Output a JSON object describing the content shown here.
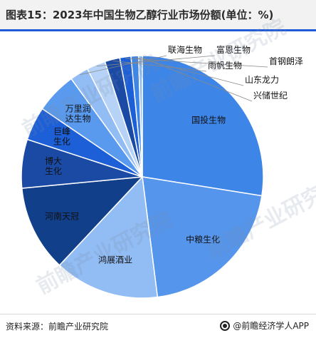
{
  "header": {
    "title": "图表15：2023年中国生物乙醇行业市场份额(单位：%)"
  },
  "footer": {
    "source": "资料来源：前瞻产业研究院",
    "brand": "@前瞻经济学人APP"
  },
  "watermark": {
    "text": "前瞻产业研究院"
  },
  "colors": {
    "dark_navy": "#123f8a",
    "dark_blue": "#1a4aa3",
    "royal_blue": "#1d5fd6",
    "medium_blue": "#3d86e8",
    "light_blue": "#92bcf4",
    "pale_blue": "#b6d3f7",
    "border": "#ffffff"
  },
  "chart_data": {
    "type": "pie",
    "title": "图表15：2023年中国生物乙醇行业市场份额(单位：%)",
    "start_angle_deg": 0,
    "direction": "clockwise",
    "legend": "none",
    "slices": [
      {
        "label": "国投生物",
        "value": 27.5,
        "color": "#3d86e8"
      },
      {
        "label": "中粮生化",
        "value": 20.5,
        "color": "#5695ec"
      },
      {
        "label": "鸿展酒业",
        "value": 14.0,
        "color": "#92bcf4"
      },
      {
        "label": "河南天冠",
        "value": 11.5,
        "color": "#123f8a"
      },
      {
        "label": "博大生化",
        "value": 6.5,
        "color": "#1a4aa3"
      },
      {
        "label": "巨峰生化",
        "value": 4.5,
        "color": "#1d5fd6"
      },
      {
        "label": "万里润达生物",
        "value": 5.5,
        "color": "#5a9aee"
      },
      {
        "label": "联海生物",
        "value": 2.5,
        "color": "#92bcf4"
      },
      {
        "label": "富恩生物",
        "value": 2.5,
        "color": "#b6d3f7"
      },
      {
        "label": "雨帆生物",
        "value": 2.0,
        "color": "#1a4aa3"
      },
      {
        "label": "首钢朗泽",
        "value": 1.5,
        "color": "#1d5fd6"
      },
      {
        "label": "山东龙力",
        "value": 1.0,
        "color": "#3d86e8"
      },
      {
        "label": "兴储世纪",
        "value": 0.5,
        "color": "#92bcf4"
      }
    ]
  }
}
